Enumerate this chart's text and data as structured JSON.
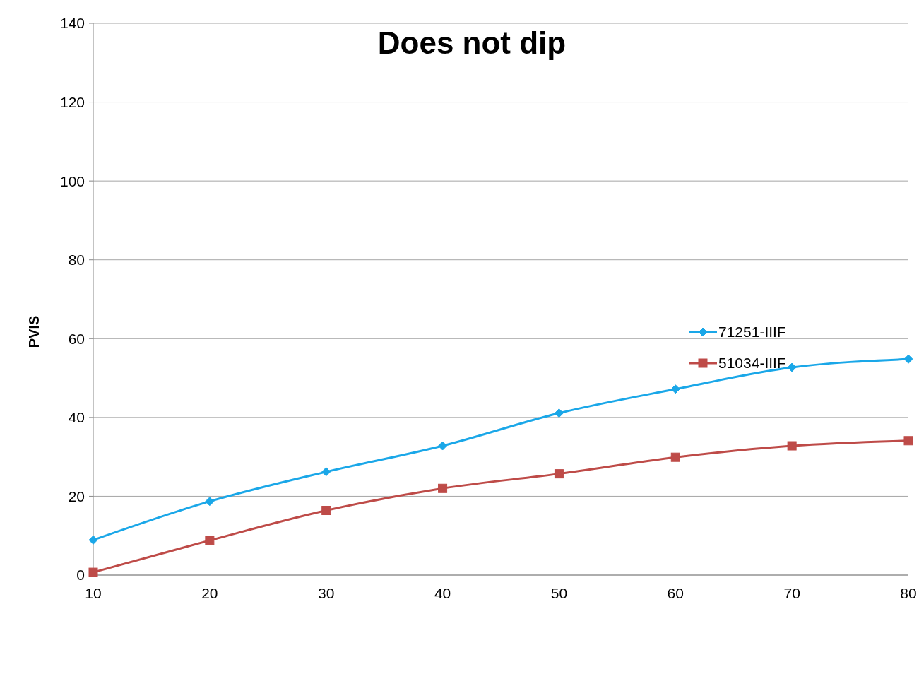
{
  "chart_data": {
    "type": "line",
    "title": "Does not dip",
    "ylabel": "PVIS",
    "x": [
      10,
      20,
      30,
      40,
      50,
      60,
      70,
      80
    ],
    "series": [
      {
        "name": "71251-IIIF",
        "color": "#1aa7e8",
        "marker": "diamond",
        "values": [
          8.9,
          18.7,
          26.2,
          32.8,
          41.1,
          47.2,
          52.7,
          54.8
        ]
      },
      {
        "name": "51034-IIIF",
        "color": "#be4b48",
        "marker": "square",
        "values": [
          0.7,
          8.8,
          16.4,
          22,
          25.7,
          29.9,
          32.8,
          34.1
        ]
      }
    ],
    "xlim": [
      10,
      80
    ],
    "xticks": [
      10,
      20,
      30,
      40,
      50,
      60,
      70,
      80
    ],
    "ylim": [
      0,
      140
    ],
    "yticks": [
      0,
      20,
      40,
      60,
      80,
      100,
      120,
      140
    ],
    "grid": "y",
    "legend": "right"
  }
}
